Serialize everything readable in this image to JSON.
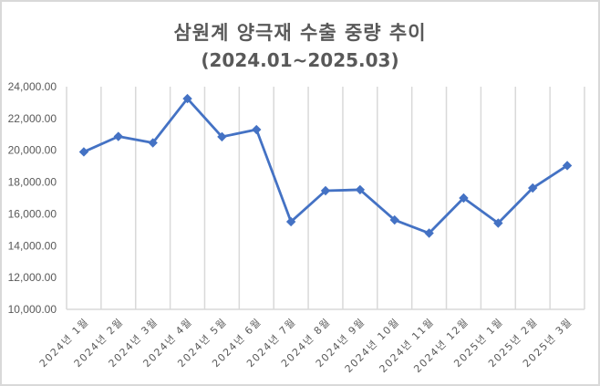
{
  "chart": {
    "title": "삼원계 양극재 수출 중량 추이",
    "subtitle": "(2024.01~2025.03)",
    "colors": {
      "line": "#4472c4",
      "grid": "#d9d9d9",
      "text": "#595959",
      "border": "#d9d9d9"
    }
  },
  "chart_data": {
    "type": "line",
    "title": "삼원계 양극재 수출 중량 추이",
    "subtitle": "(2024.01~2025.03)",
    "xlabel": "",
    "ylabel": "",
    "ylim": [
      10000,
      24000
    ],
    "yticks": [
      "24,000.00",
      "22,000.00",
      "20,000.00",
      "18,000.00",
      "16,000.00",
      "14,000.00",
      "12,000.00",
      "10,000.00"
    ],
    "ytick_values": [
      24000,
      22000,
      20000,
      18000,
      16000,
      14000,
      12000,
      10000
    ],
    "grid": {
      "vertical": true,
      "horizontal": false
    },
    "legend": null,
    "marker": "diamond",
    "categories": [
      "2024년 1월",
      "2024년 2월",
      "2024년 3월",
      "2024년 4월",
      "2024년 5월",
      "2024년 6월",
      "2024년 7월",
      "2024년 8월",
      "2024년 9월",
      "2024년 10월",
      "2024년 11월",
      "2024년 12월",
      "2025년 1월",
      "2025년 2월",
      "2025년 3월"
    ],
    "series": [
      {
        "name": "삼원계 양극재 수출 중량",
        "values": [
          19900,
          20870,
          20470,
          23250,
          20850,
          21300,
          15510,
          17460,
          17520,
          15620,
          14790,
          17000,
          15420,
          17630,
          19040
        ]
      }
    ]
  }
}
